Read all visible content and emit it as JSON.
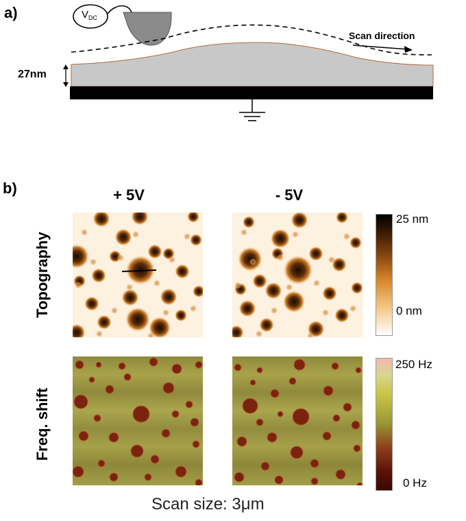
{
  "panel_a": {
    "label": "a)",
    "vdc": {
      "main": "V",
      "sub": "DC"
    },
    "scan_direction": "Scan direction",
    "thickness": "27nm"
  },
  "panel_b": {
    "label": "b)",
    "columns": [
      "+ 5V",
      "- 5V"
    ],
    "rows": [
      "Topography",
      "Freq. shift"
    ],
    "topography_scale": {
      "max": "25 nm",
      "min": "0 nm"
    },
    "frequency_scale": {
      "max": "250 Hz",
      "min": "0 Hz"
    },
    "scan_size": "Scan size: 3μm"
  },
  "colors": {
    "film": "#c8c8c8",
    "substrate": "#000000",
    "tip": "#8a8a8a",
    "topo_bg": "#fdf1e0",
    "freq_bg": "#9a9642"
  }
}
